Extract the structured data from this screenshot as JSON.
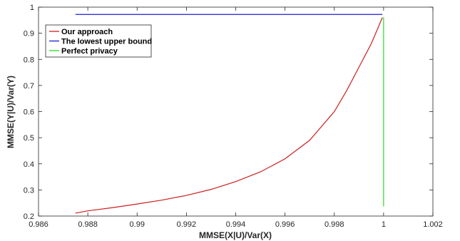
{
  "chart_data": {
    "type": "line",
    "title": "",
    "xlabel": "MMSE(X|U)/Var(X)",
    "ylabel": "MMSE(Y|U)/Var(Y)",
    "xlim": [
      0.986,
      1.002
    ],
    "ylim": [
      0.2,
      1.0
    ],
    "xticks": [
      0.986,
      0.988,
      0.99,
      0.992,
      0.994,
      0.996,
      0.998,
      1.0,
      1.002
    ],
    "xtick_labels": [
      "0.986",
      "0.988",
      "0.99",
      "0.992",
      "0.994",
      "0.996",
      "0.998",
      "1",
      "1.002"
    ],
    "yticks": [
      0.2,
      0.3,
      0.4,
      0.5,
      0.6,
      0.7,
      0.8,
      0.9,
      1.0
    ],
    "ytick_labels": [
      "0.2",
      "0.3",
      "0.4",
      "0.5",
      "0.6",
      "0.7",
      "0.8",
      "0.9",
      "1"
    ],
    "grid": false,
    "legend_position": "top-left",
    "series": [
      {
        "name": "Our approach",
        "color": "#cc1f1f",
        "x": [
          0.9875,
          0.988,
          0.989,
          0.99,
          0.991,
          0.992,
          0.993,
          0.994,
          0.995,
          0.996,
          0.997,
          0.998,
          0.9985,
          0.999,
          0.9995,
          0.99995
        ],
        "y": [
          0.211,
          0.22,
          0.232,
          0.246,
          0.261,
          0.279,
          0.302,
          0.332,
          0.369,
          0.419,
          0.49,
          0.6,
          0.68,
          0.77,
          0.86,
          0.96
        ]
      },
      {
        "name": "The lowest upper bound",
        "color": "#1c1cd6",
        "x": [
          0.9875,
          0.99995
        ],
        "y": [
          0.972,
          0.972
        ]
      },
      {
        "name": "Perfect privacy",
        "color": "#22e022",
        "x": [
          1.0,
          1.0
        ],
        "y": [
          0.237,
          0.961
        ]
      }
    ]
  }
}
